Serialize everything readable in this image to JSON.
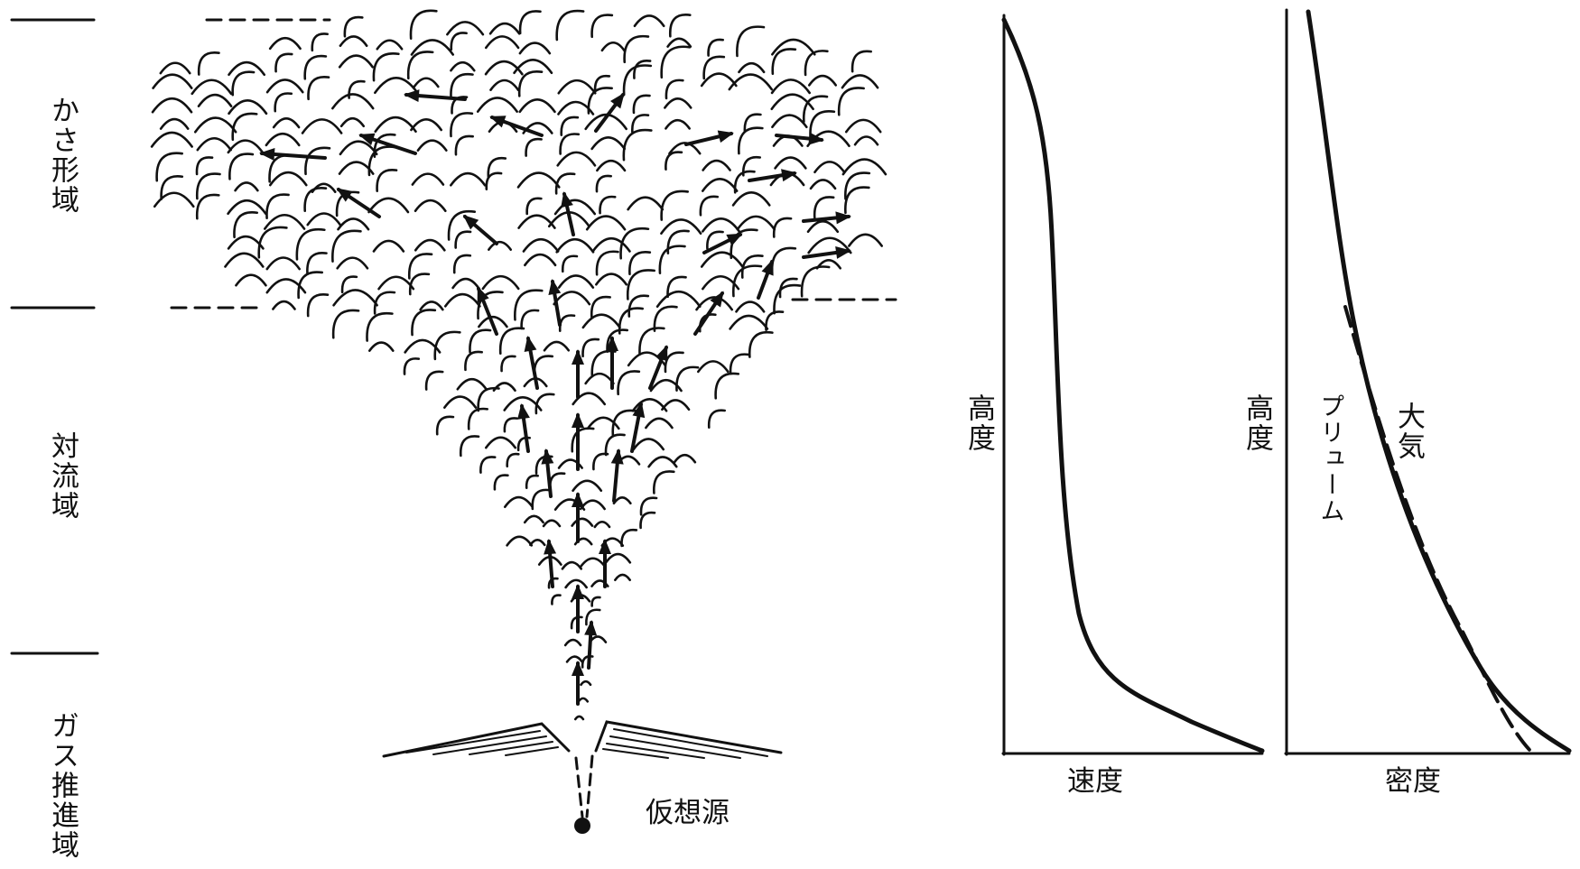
{
  "zones": [
    "かさ形域",
    "対流域",
    "ガス推進域"
  ],
  "source_label": "仮想源",
  "velocity_graph": {
    "y_label": "高度",
    "x_label": "速度"
  },
  "density_graph": {
    "y_label": "高度",
    "x_label": "密度",
    "curve_labels": [
      "プリューム",
      "大気"
    ]
  }
}
